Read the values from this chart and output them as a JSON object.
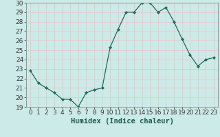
{
  "x": [
    0,
    1,
    2,
    3,
    4,
    5,
    6,
    7,
    8,
    9,
    10,
    11,
    12,
    13,
    14,
    15,
    16,
    17,
    18,
    19,
    20,
    21,
    22,
    23
  ],
  "y": [
    22.8,
    21.5,
    21.0,
    20.5,
    19.8,
    19.8,
    19.0,
    20.5,
    20.8,
    21.0,
    25.3,
    27.2,
    29.0,
    29.0,
    30.0,
    30.0,
    29.0,
    29.5,
    28.0,
    26.2,
    24.5,
    23.3,
    24.0,
    24.2
  ],
  "line_color": "#1a6b5a",
  "marker": "D",
  "markersize": 2.0,
  "linewidth": 0.9,
  "xlabel": "Humidex (Indice chaleur)",
  "xlim": [
    -0.5,
    23.5
  ],
  "ylim": [
    19,
    30
  ],
  "yticks": [
    19,
    20,
    21,
    22,
    23,
    24,
    25,
    26,
    27,
    28,
    29,
    30
  ],
  "xticks": [
    0,
    1,
    2,
    3,
    4,
    5,
    6,
    7,
    8,
    9,
    10,
    11,
    12,
    13,
    14,
    15,
    16,
    17,
    18,
    19,
    20,
    21,
    22,
    23
  ],
  "bg_color": "#cceae7",
  "grid_color_major": "#e8c8c8",
  "grid_color_minor": "#e8c8c8",
  "xlabel_fontsize": 7.5,
  "tick_fontsize": 6.5,
  "spine_color": "#888888"
}
